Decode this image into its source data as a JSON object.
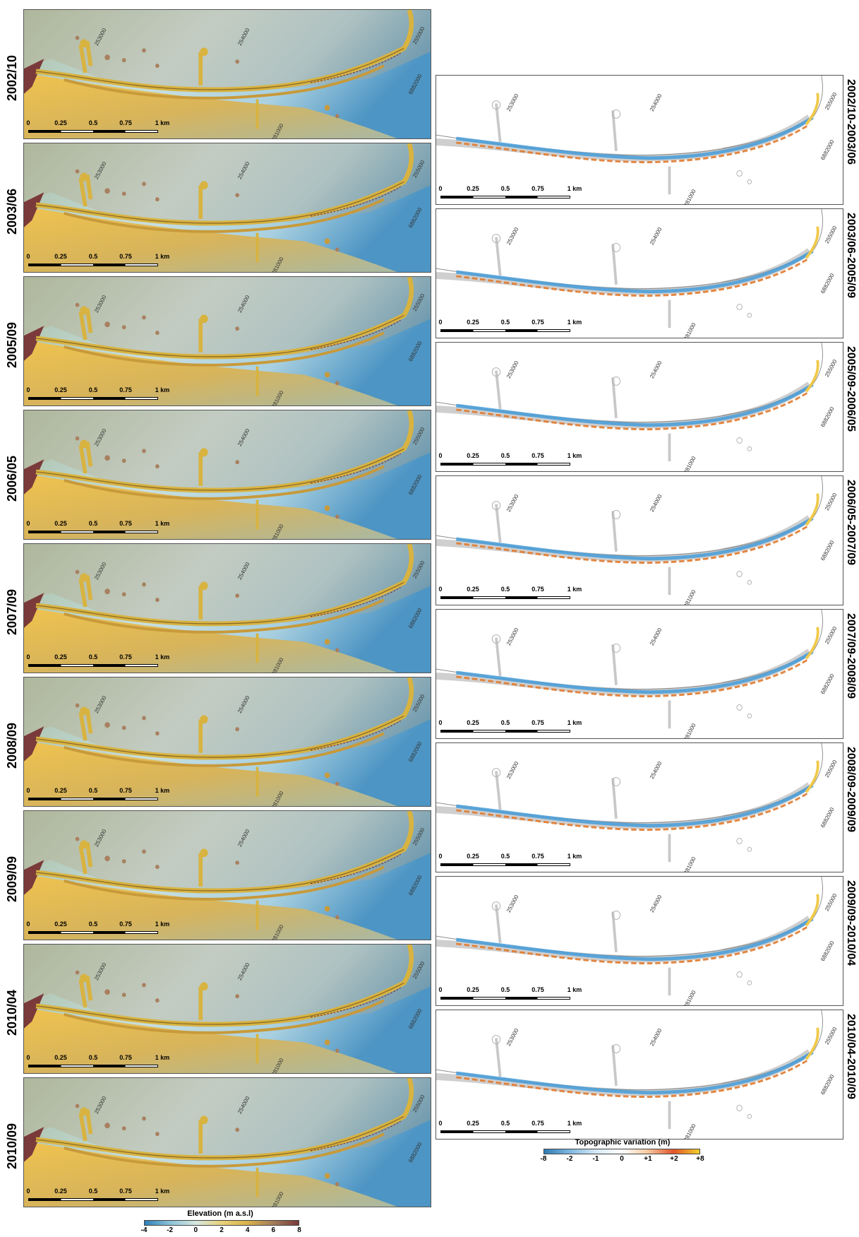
{
  "elevation_panels": [
    {
      "date": "2002/10"
    },
    {
      "date": "2003/06"
    },
    {
      "date": "2005/09"
    },
    {
      "date": "2006/05"
    },
    {
      "date": "2007/09"
    },
    {
      "date": "2008/09"
    },
    {
      "date": "2009/09"
    },
    {
      "date": "2010/04"
    },
    {
      "date": "2010/09"
    }
  ],
  "variation_panels": [
    {
      "period": "2002/10-2003/06"
    },
    {
      "period": "2003/06-2005/09"
    },
    {
      "period": "2005/09-2006/05"
    },
    {
      "period": "2006/05-2007/09"
    },
    {
      "period": "2007/09-2008/09"
    },
    {
      "period": "2008/09-2009/09"
    },
    {
      "period": "2009/09-2010/04"
    },
    {
      "period": "2010/04-2010/09"
    }
  ],
  "scale_bar": {
    "ticks": [
      "0",
      "0.25",
      "0.5",
      "0.75",
      "1 km"
    ]
  },
  "grid_labels": {
    "x1": "253000",
    "x2": "254000",
    "x3": "255000",
    "y1": "6882000",
    "y2": "6881000"
  },
  "legend_elevation": {
    "title": "Elevation (m a.s.l)",
    "ticks": [
      "-4",
      "-2",
      "0",
      "2",
      "4",
      "6",
      "8"
    ],
    "colors": [
      "#2e7fb8",
      "#8cc3d8",
      "#d6e8df",
      "#e8d27a",
      "#d9b24a",
      "#a37e5a",
      "#7a3a3a"
    ]
  },
  "legend_variation": {
    "title": "Topographic variation (m)",
    "ticks": [
      "-8",
      "-2",
      "-1",
      "0",
      "+1",
      "+2",
      "+8"
    ],
    "colors": [
      "#2c7bb6",
      "#7fb8e0",
      "#d6e9f5",
      "#ffffff",
      "#f6c9a0",
      "#e0542a",
      "#f2d12a"
    ]
  }
}
